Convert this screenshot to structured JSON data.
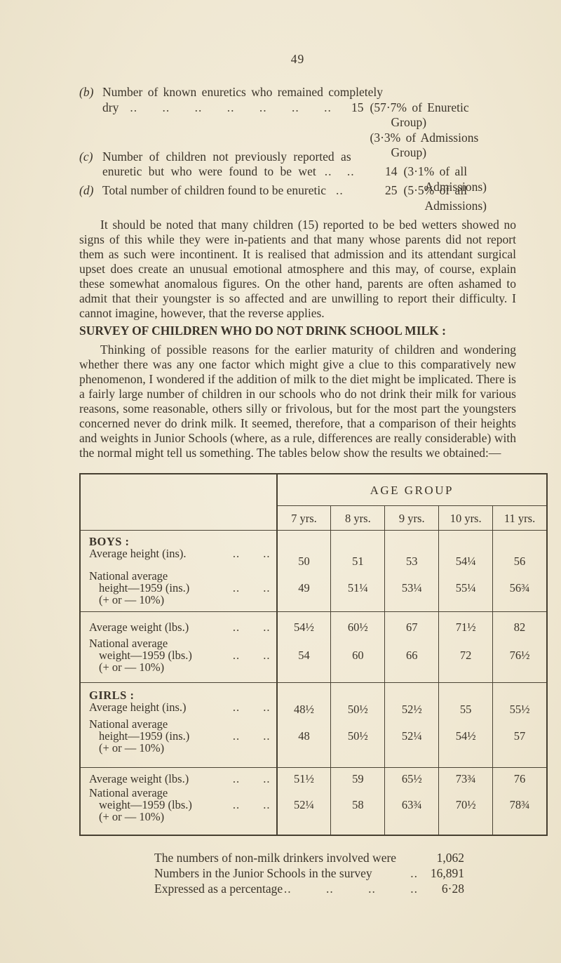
{
  "page": {
    "number": "49"
  },
  "items": [
    {
      "marker": "(b)",
      "label_line1": "Number of known enuretics who remained completely",
      "label_line2": "dry",
      "leaders": ".. .. .. .. .. .. ..",
      "value": "15",
      "notes": [
        "(57·7% of Enuretic Group)",
        "(3·3% of Admissions Group)"
      ]
    },
    {
      "marker": "(c)",
      "label_line1": "Number of children not previously reported as",
      "label_line2": "enuretic but who were found to be wet",
      "leaders": ".. ..",
      "value": "14",
      "notes": [
        "(3·1% of all Admissions)"
      ]
    },
    {
      "marker": "(d)",
      "label_line1": "Total number of children found to be enuretic",
      "leaders": "..",
      "value": "25",
      "notes": [
        "(5·5% of all Admissions)"
      ]
    }
  ],
  "paragraph1": "It should be noted that many children (15) reported to be bed wetters showed no signs of this while they were in-patients and that many whose parents did not report them as such were incontinent. It is realised that admission and its attendant surgical upset does create an unusual emotional atmosphere and this may, of course, explain these somewhat anomalous figures. On the other hand, parents are often ashamed to admit that their youngster is so affected and are unwilling to report their difficulty. I cannot imagine, however, that the reverse applies.",
  "section": {
    "heading": "SURVEY OF CHILDREN WHO DO NOT DRINK SCHOOL MILK :",
    "paragraph": "Thinking of possible reasons for the earlier maturity of children and wondering whether there was any one factor which might give a clue to this comparatively new phenomenon, I wondered if the addition of milk to the diet might be implicated. There is a fairly large number of children in our schools who do not drink their milk for various reasons, some reasonable, others silly or frivolous, but for the most part the youngsters concerned never do drink milk. It seemed, therefore, that a comparison of their heights and weights in Junior Schools (where, as a rule, differences are really considerable) with the normal might tell us something. The tables below show the results we obtained:—"
  },
  "table": {
    "header_group": "AGE GROUP",
    "age_columns": [
      "7 yrs.",
      "8 yrs.",
      "9 yrs.",
      "10 yrs.",
      "11 yrs."
    ],
    "rows": [
      {
        "section": "BOYS :",
        "label": "Average height (ins).",
        "leaders": ".. ..",
        "values": [
          "50",
          "51",
          "53",
          "54¼",
          "56"
        ]
      },
      {
        "lines": [
          "National average",
          "height—1959 (ins.)",
          "(+ or — 10%)"
        ],
        "leaders": ".. ..",
        "values": [
          "49",
          "51¼",
          "53¼",
          "55¼",
          "56¾"
        ]
      },
      {
        "label": "Average weight (lbs.)",
        "leaders": ".. ..",
        "values": [
          "54½",
          "60½",
          "67",
          "71½",
          "82"
        ]
      },
      {
        "lines": [
          "National average",
          "weight—1959 (lbs.)",
          "(+ or — 10%)"
        ],
        "leaders": ".. ..",
        "values": [
          "54",
          "60",
          "66",
          "72",
          "76½"
        ]
      },
      {
        "section": "GIRLS :",
        "label": "Average height (ins.)",
        "leaders": ".. ..",
        "values": [
          "48½",
          "50½",
          "52½",
          "55",
          "55½"
        ]
      },
      {
        "lines": [
          "National average",
          "height—1959 (ins.)",
          "(+ or — 10%)"
        ],
        "leaders": ".. ..",
        "values": [
          "48",
          "50½",
          "52¼",
          "54½",
          "57"
        ]
      },
      {
        "label": "Average weight (lbs.)",
        "leaders": ".. ..",
        "values": [
          "51½",
          "59",
          "65½",
          "73¾",
          "76"
        ]
      },
      {
        "lines": [
          "National average",
          "weight—1959 (lbs.)",
          "(+ or — 10%)"
        ],
        "leaders": ".. ..",
        "values": [
          "52¼",
          "58",
          "63¾",
          "70½",
          "78¾"
        ]
      }
    ]
  },
  "footer": {
    "lines": [
      {
        "label": "The numbers of non-milk drinkers involved were",
        "leaders": "",
        "value": "1,062"
      },
      {
        "label": "Numbers in the Junior Schools in the survey",
        "leaders": "..",
        "value": "16,891"
      },
      {
        "label": "Expressed as a percentage",
        "leaders": ".. .. .. ..",
        "value": "6·28"
      }
    ]
  }
}
